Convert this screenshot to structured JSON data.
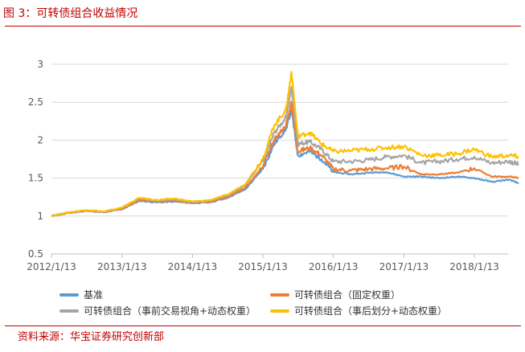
{
  "header": {
    "title": "图 3：可转债组合收益情况"
  },
  "footer": {
    "source": "资料来源：华宝证券研究创新部"
  },
  "chart_data": {
    "type": "line",
    "title": "",
    "xlabel": "",
    "ylabel": "",
    "ylim": [
      0.5,
      3
    ],
    "yticks": [
      "0.5",
      "1",
      "1.5",
      "2",
      "2.5",
      "3"
    ],
    "xticks": [
      "2012/1/13",
      "2013/1/13",
      "2014/1/13",
      "2015/1/13",
      "2016/1/13",
      "2017/1/13",
      "2018/1/13"
    ],
    "grid": "horizontal",
    "legend_position": "bottom",
    "x": [
      "2012-01-13",
      "2012-04-13",
      "2012-07-13",
      "2012-10-13",
      "2013-01-13",
      "2013-04-13",
      "2013-07-13",
      "2013-10-13",
      "2014-01-13",
      "2014-04-13",
      "2014-07-13",
      "2014-10-13",
      "2015-01-13",
      "2015-03-13",
      "2015-05-13",
      "2015-06-10",
      "2015-07-13",
      "2015-09-13",
      "2015-11-13",
      "2016-01-13",
      "2016-04-13",
      "2016-07-13",
      "2016-10-13",
      "2017-01-13",
      "2017-04-13",
      "2017-07-13",
      "2017-10-13",
      "2018-01-13",
      "2018-04-13",
      "2018-07-13",
      "2018-08-31"
    ],
    "series": [
      {
        "name": "基准",
        "color": "#5b9bd5",
        "values": [
          1.0,
          1.04,
          1.07,
          1.05,
          1.09,
          1.2,
          1.18,
          1.19,
          1.17,
          1.18,
          1.24,
          1.35,
          1.62,
          1.95,
          2.15,
          2.4,
          1.8,
          1.85,
          1.75,
          1.58,
          1.55,
          1.57,
          1.58,
          1.52,
          1.52,
          1.5,
          1.52,
          1.5,
          1.45,
          1.48,
          1.43
        ]
      },
      {
        "name": "可转债组合（固定权重）",
        "color": "#ed7d31",
        "values": [
          1.0,
          1.04,
          1.07,
          1.05,
          1.1,
          1.21,
          1.19,
          1.2,
          1.17,
          1.19,
          1.25,
          1.37,
          1.65,
          2.0,
          2.2,
          2.5,
          1.85,
          1.9,
          1.8,
          1.62,
          1.6,
          1.62,
          1.63,
          1.65,
          1.55,
          1.55,
          1.57,
          1.63,
          1.52,
          1.52,
          1.5
        ]
      },
      {
        "name": "可转债组合（事前交易视角+动态权重）",
        "color": "#a5a5a5",
        "values": [
          1.0,
          1.05,
          1.07,
          1.05,
          1.11,
          1.23,
          1.2,
          1.22,
          1.18,
          1.2,
          1.27,
          1.4,
          1.72,
          2.1,
          2.3,
          2.7,
          1.95,
          1.98,
          1.88,
          1.72,
          1.72,
          1.74,
          1.78,
          1.8,
          1.7,
          1.72,
          1.75,
          1.78,
          1.7,
          1.72,
          1.68
        ]
      },
      {
        "name": "可转债组合（事后划分+动态权重）",
        "color": "#ffc000",
        "values": [
          1.0,
          1.05,
          1.08,
          1.06,
          1.11,
          1.24,
          1.21,
          1.23,
          1.19,
          1.21,
          1.28,
          1.42,
          1.76,
          2.2,
          2.4,
          2.9,
          2.05,
          2.1,
          1.95,
          1.85,
          1.86,
          1.88,
          1.9,
          1.92,
          1.8,
          1.8,
          1.82,
          1.88,
          1.78,
          1.8,
          1.78
        ]
      }
    ]
  }
}
